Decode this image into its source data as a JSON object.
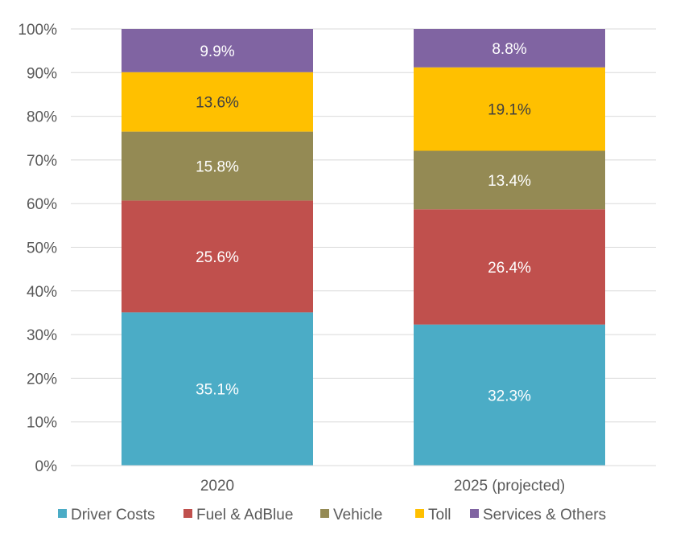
{
  "chart_data": {
    "type": "bar",
    "stacked": true,
    "title": "",
    "xlabel": "",
    "ylabel": "",
    "ylim": [
      0,
      100
    ],
    "yticks": [
      "0%",
      "10%",
      "20%",
      "30%",
      "40%",
      "50%",
      "60%",
      "70%",
      "80%",
      "90%",
      "100%"
    ],
    "grid": true,
    "legend_position": "bottom",
    "categories": [
      "2020",
      "2025 (projected)"
    ],
    "series": [
      {
        "name": "Driver Costs",
        "color": "#4BACC6",
        "label_color": "#ffffff",
        "values": [
          35.1,
          32.3
        ],
        "labels": [
          "35.1%",
          "32.3%"
        ]
      },
      {
        "name": "Fuel & AdBlue",
        "color": "#C0504D",
        "label_color": "#ffffff",
        "values": [
          25.6,
          26.4
        ],
        "labels": [
          "25.6%",
          "26.4%"
        ]
      },
      {
        "name": "Vehicle",
        "color": "#948A54",
        "label_color": "#ffffff",
        "values": [
          15.8,
          13.4
        ],
        "labels": [
          "15.8%",
          "13.4%"
        ]
      },
      {
        "name": "Toll",
        "color": "#FFC000",
        "label_color": "#404040",
        "values": [
          13.6,
          19.1
        ],
        "labels": [
          "13.6%",
          "19.1%"
        ]
      },
      {
        "name": "Services & Others",
        "color": "#8064A2",
        "label_color": "#ffffff",
        "values": [
          9.9,
          8.8
        ],
        "labels": [
          "9.9%",
          "8.8%"
        ]
      }
    ]
  }
}
